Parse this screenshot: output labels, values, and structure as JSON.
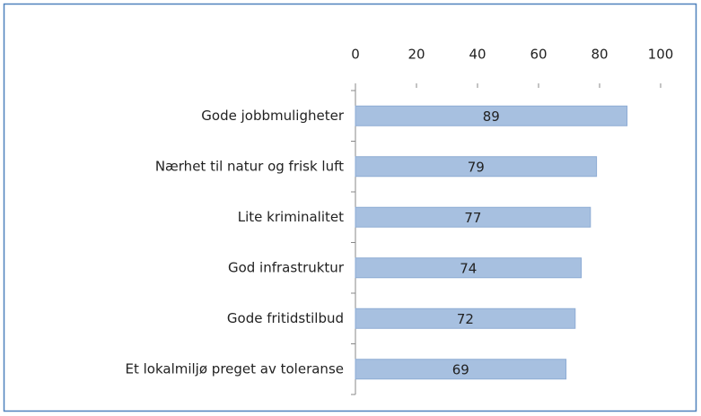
{
  "chart_data": {
    "type": "barh",
    "categories": [
      "Gode jobbmuligheter",
      "Nærhet til natur og frisk luft",
      "Lite kriminalitet",
      "God infrastruktur",
      "Gode fritidstilbud",
      "Et lokalmiljø preget av toleranse"
    ],
    "values": [
      89,
      79,
      77,
      74,
      72,
      69
    ],
    "color": "#a7c0e0",
    "xlim": [
      0,
      100
    ],
    "xticks": [
      0,
      20,
      40,
      60,
      80,
      100
    ]
  }
}
